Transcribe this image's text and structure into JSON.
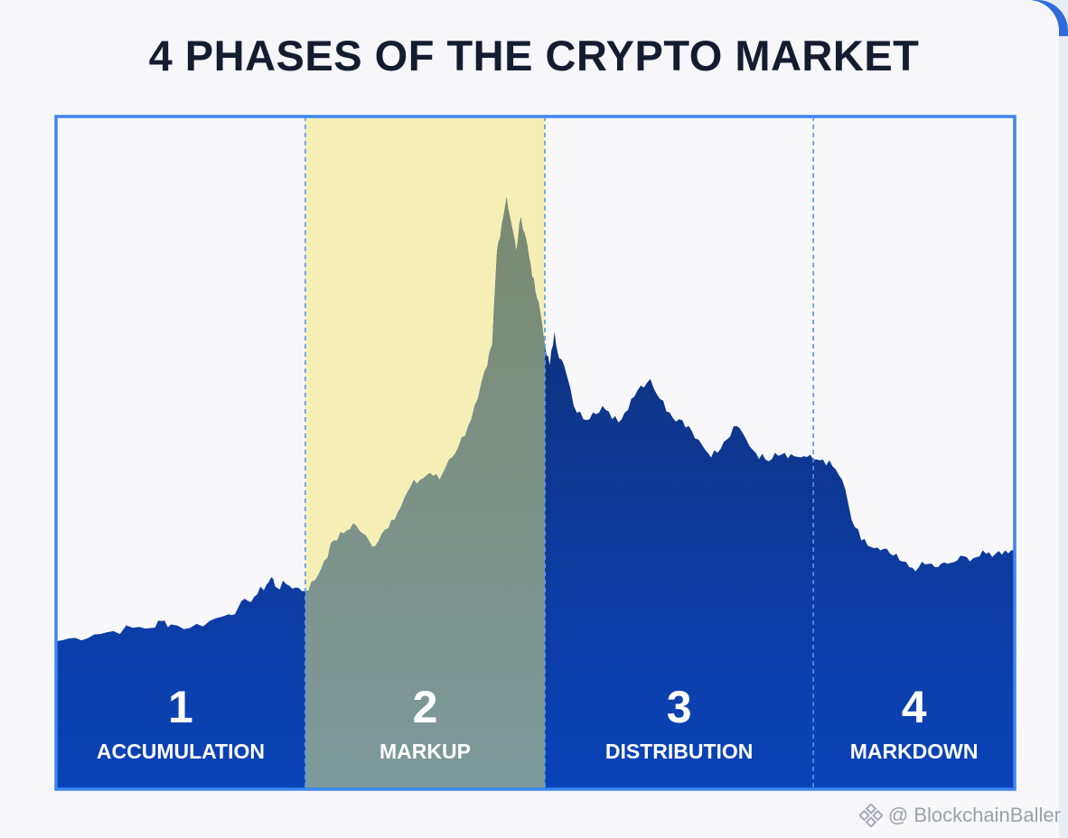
{
  "title": "4 PHASES OF THE CRYPTO MARKET",
  "watermark": "@ BlockchainBaller",
  "colors": {
    "frame": "#3d86f0",
    "area_top": "#0f2e72",
    "area_bottom": "#0a43b9",
    "highlight": "#f5efb6",
    "markup_area": "#7c8f78",
    "divider": "#5b93ee",
    "label_text": "#ffffff"
  },
  "chart_data": {
    "type": "area",
    "title": "4 PHASES OF THE CRYPTO MARKET",
    "xlabel": "",
    "ylabel": "",
    "grid": false,
    "legend": "none",
    "xlim": [
      0,
      100
    ],
    "ylim": [
      0,
      100
    ],
    "highlighted_phase": 2,
    "phases": [
      {
        "number": "1",
        "label": "ACCUMULATION",
        "start": 0,
        "end": 26
      },
      {
        "number": "2",
        "label": "MARKUP",
        "start": 26,
        "end": 51
      },
      {
        "number": "3",
        "label": "DISTRIBUTION",
        "start": 51,
        "end": 79
      },
      {
        "number": "4",
        "label": "MARKDOWN",
        "start": 79,
        "end": 100
      }
    ],
    "series": [
      {
        "values": [
          [
            0,
            22
          ],
          [
            2,
            22.5
          ],
          [
            4,
            23
          ],
          [
            6,
            23.5
          ],
          [
            8,
            24
          ],
          [
            10,
            24
          ],
          [
            11,
            25
          ],
          [
            12,
            24.5
          ],
          [
            14,
            24
          ],
          [
            16,
            25
          ],
          [
            18,
            26
          ],
          [
            19,
            27
          ],
          [
            20,
            28
          ],
          [
            21,
            29
          ],
          [
            22,
            30.5
          ],
          [
            22.5,
            31.5
          ],
          [
            23,
            30
          ],
          [
            24,
            30.5
          ],
          [
            25,
            30
          ],
          [
            26,
            29.5
          ],
          [
            27,
            31
          ],
          [
            28,
            34
          ],
          [
            29,
            37
          ],
          [
            30,
            38
          ],
          [
            31,
            39.5
          ],
          [
            32,
            38
          ],
          [
            33,
            36
          ],
          [
            34,
            38
          ],
          [
            35,
            40
          ],
          [
            36,
            42
          ],
          [
            37,
            45
          ],
          [
            38,
            46
          ],
          [
            39,
            47
          ],
          [
            40,
            46
          ],
          [
            41,
            49
          ],
          [
            42,
            51
          ],
          [
            43,
            54
          ],
          [
            44,
            58
          ],
          [
            45,
            63
          ],
          [
            45.5,
            66
          ],
          [
            46,
            80
          ],
          [
            46.5,
            84
          ],
          [
            47,
            88
          ],
          [
            47.5,
            84
          ],
          [
            48,
            80
          ],
          [
            48.5,
            85
          ],
          [
            49,
            82
          ],
          [
            49.5,
            78
          ],
          [
            50,
            74
          ],
          [
            50.5,
            71
          ],
          [
            51,
            66
          ],
          [
            51.5,
            63
          ],
          [
            52,
            68
          ],
          [
            52.5,
            64
          ],
          [
            53,
            63
          ],
          [
            54,
            57
          ],
          [
            55,
            55
          ],
          [
            56,
            56
          ],
          [
            57,
            57
          ],
          [
            58,
            55
          ],
          [
            59,
            55
          ],
          [
            60,
            58
          ],
          [
            61,
            60
          ],
          [
            62,
            61
          ],
          [
            63,
            58
          ],
          [
            64,
            56
          ],
          [
            65,
            55
          ],
          [
            66,
            54
          ],
          [
            67,
            52
          ],
          [
            68,
            50
          ],
          [
            69,
            50
          ],
          [
            70,
            52
          ],
          [
            71,
            54
          ],
          [
            72,
            52
          ],
          [
            73,
            50
          ],
          [
            74,
            49
          ],
          [
            75,
            50
          ],
          [
            76,
            50
          ],
          [
            77,
            49.5
          ],
          [
            78,
            49.5
          ],
          [
            79,
            49
          ],
          [
            80,
            49
          ],
          [
            81,
            48
          ],
          [
            82,
            46
          ],
          [
            83,
            40
          ],
          [
            84,
            37
          ],
          [
            85,
            36
          ],
          [
            86,
            35.5
          ],
          [
            87,
            35
          ],
          [
            88,
            34
          ],
          [
            89,
            33
          ],
          [
            90,
            33
          ],
          [
            91,
            33.5
          ],
          [
            92,
            33
          ],
          [
            93,
            33.5
          ],
          [
            94,
            34
          ],
          [
            95,
            34.5
          ],
          [
            96,
            34.5
          ],
          [
            97,
            35
          ],
          [
            98,
            35
          ],
          [
            99,
            35.5
          ],
          [
            100,
            35.5
          ]
        ]
      }
    ]
  }
}
